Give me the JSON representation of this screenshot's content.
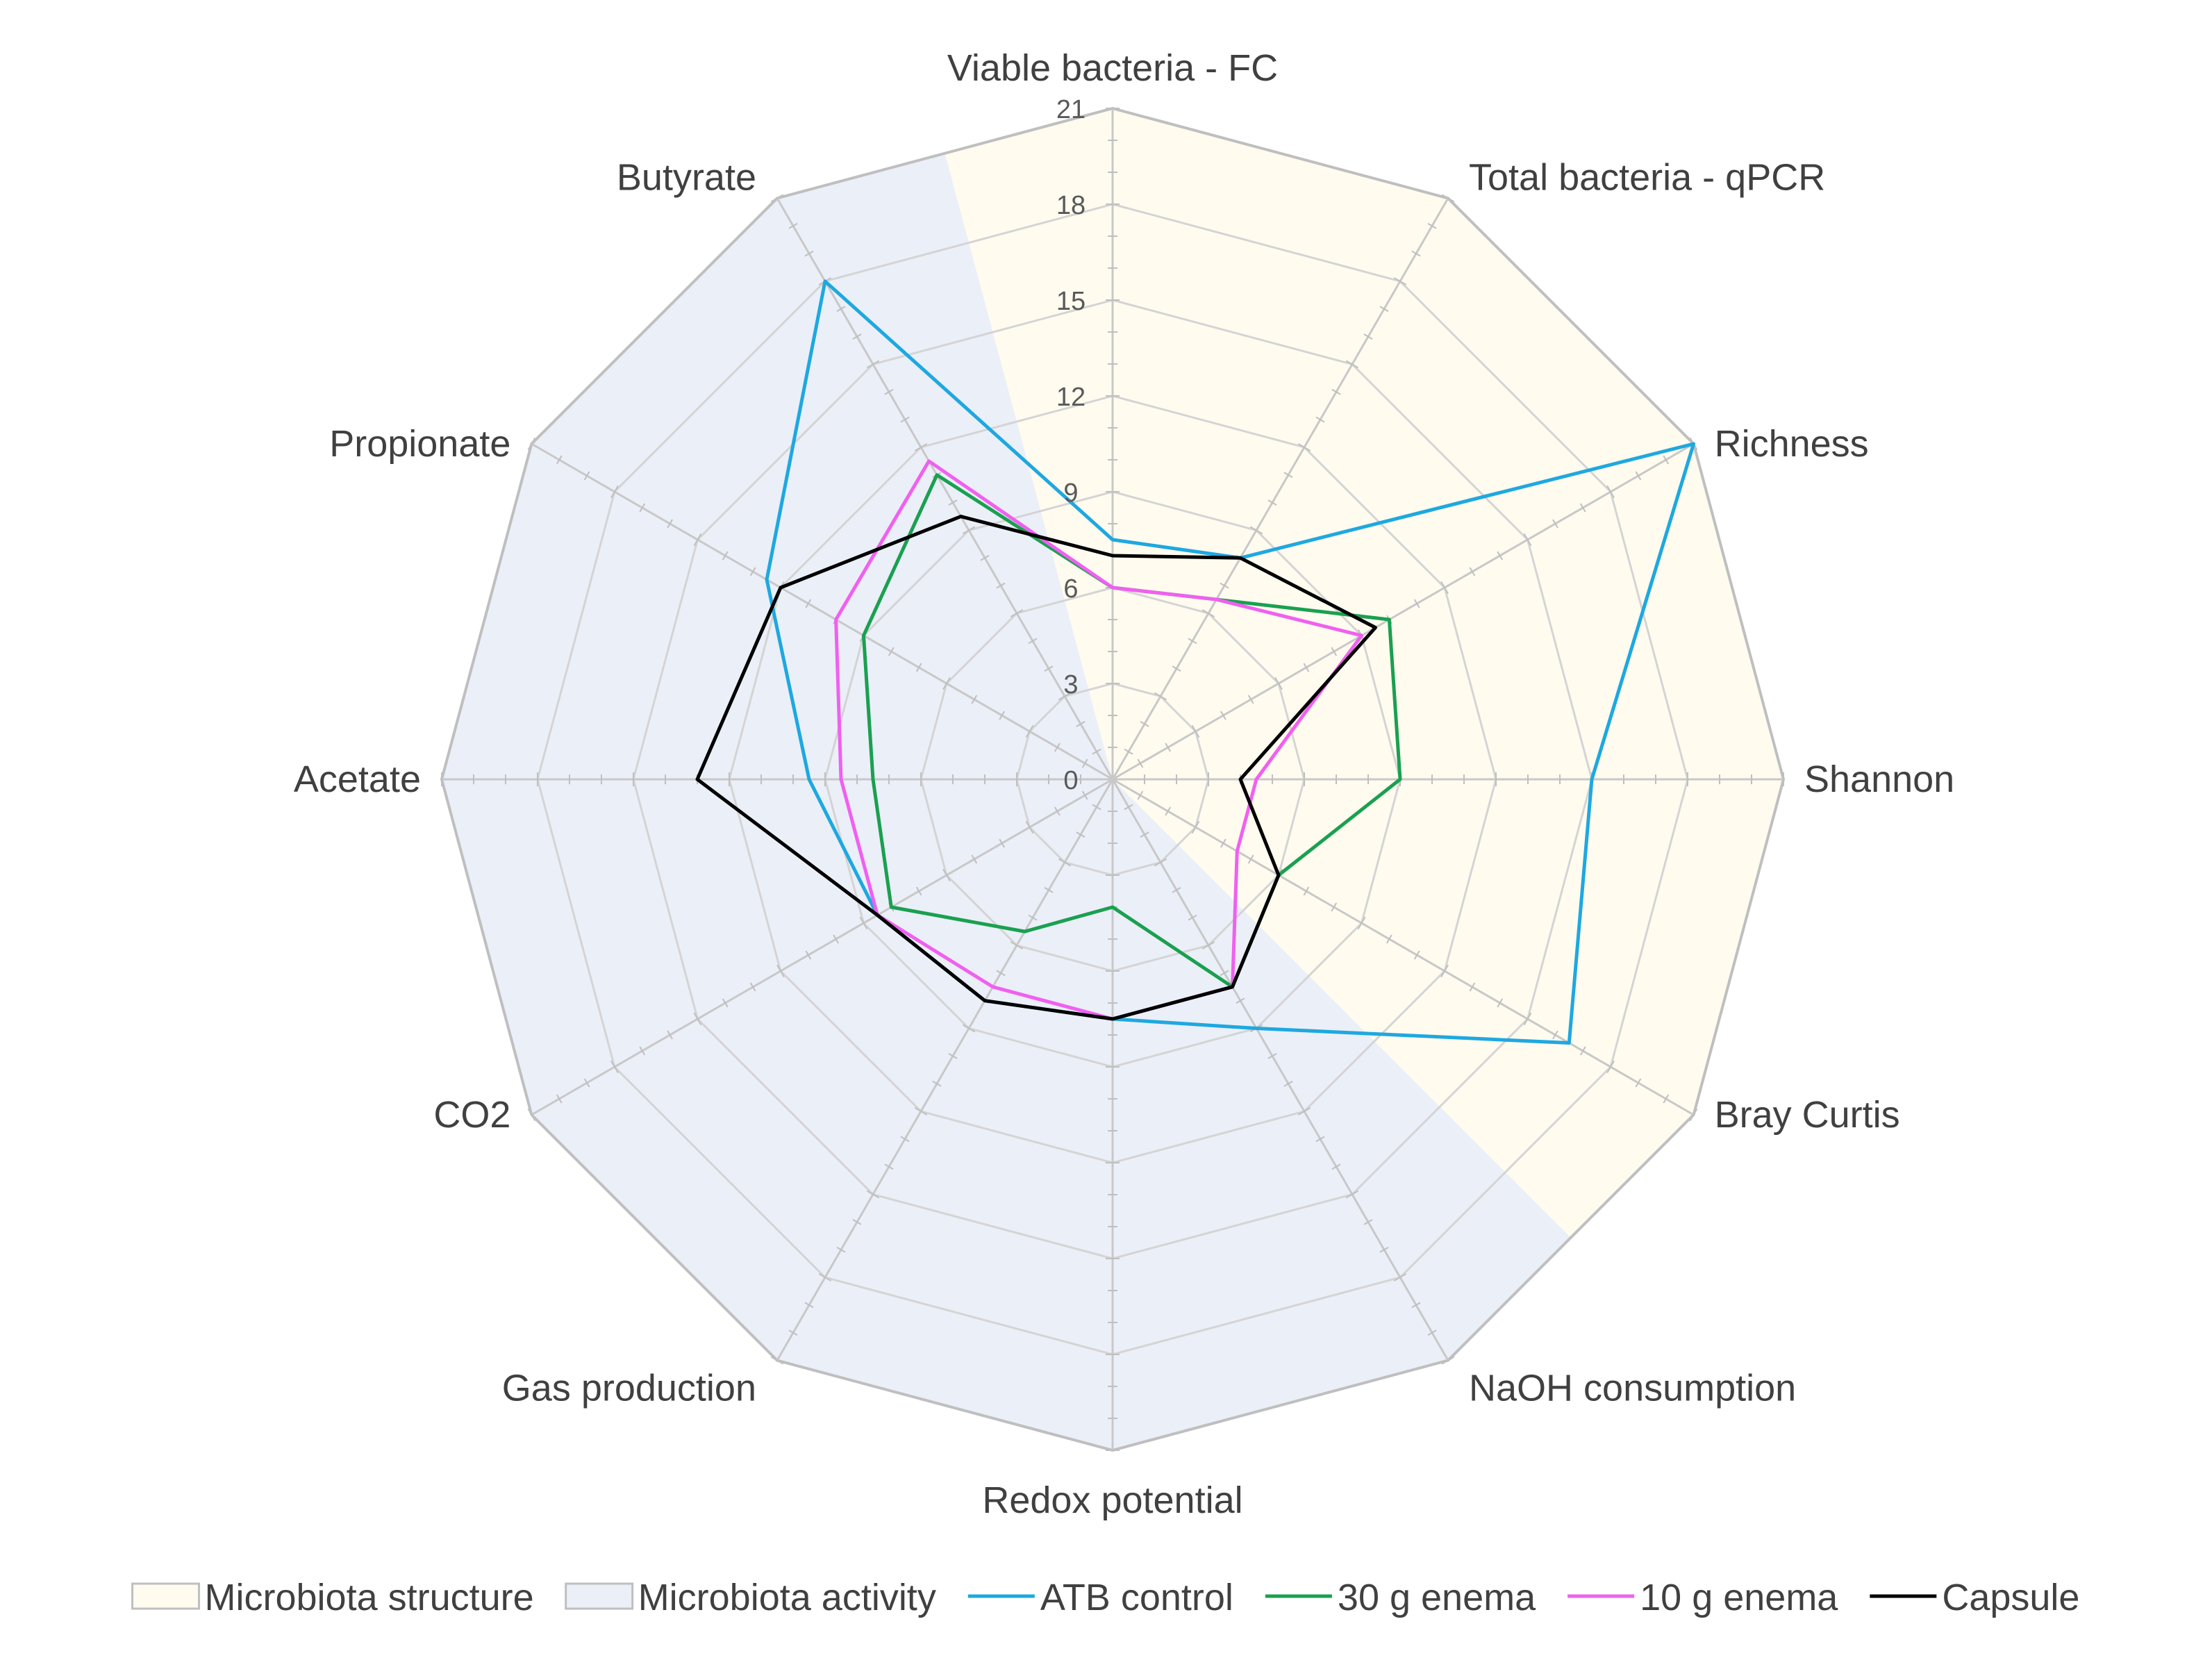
{
  "chart_data": {
    "type": "radar",
    "axes": [
      "Viable bacteria - FC",
      "Total bacteria - qPCR",
      "Richness",
      "Shannon",
      "Bray Curtis",
      "NaOH consumption",
      "Redox potential",
      "Gas production",
      "CO2",
      "Acetate",
      "Propionate",
      "Butyrate"
    ],
    "r_range": [
      0,
      21
    ],
    "ticks": [
      0,
      3,
      6,
      9,
      12,
      15,
      18,
      21
    ],
    "grid": true,
    "legend_position": "bottom",
    "regions": [
      {
        "name": "Microbiota structure",
        "axes": [
          0,
          1,
          2,
          3,
          4
        ],
        "color": "#fffbef"
      },
      {
        "name": "Microbiota activity",
        "axes": [
          5,
          6,
          7,
          8,
          9,
          10,
          11
        ],
        "color": "#ebeff8"
      }
    ],
    "series": [
      {
        "name": "ATB control",
        "color": "#1ea8e0",
        "values": [
          7.5,
          8.0,
          21.0,
          15.0,
          16.5,
          9.0,
          7.5,
          8.0,
          8.5,
          9.5,
          12.5,
          18.0
        ]
      },
      {
        "name": "30 g enema",
        "color": "#1aa050",
        "values": [
          6.0,
          6.5,
          10.0,
          9.0,
          6.0,
          7.5,
          4.0,
          5.5,
          8.0,
          7.5,
          9.0,
          11.0
        ]
      },
      {
        "name": "10 g enema",
        "color": "#f060f0",
        "values": [
          6.0,
          6.5,
          9.0,
          4.5,
          4.5,
          7.5,
          7.5,
          7.5,
          8.5,
          8.5,
          10.0,
          11.5
        ]
      },
      {
        "name": "Capsule",
        "color": "#000000",
        "values": [
          7.0,
          8.0,
          9.5,
          4.0,
          6.0,
          7.5,
          7.5,
          8.0,
          8.5,
          13.0,
          12.0,
          9.5
        ]
      }
    ]
  }
}
